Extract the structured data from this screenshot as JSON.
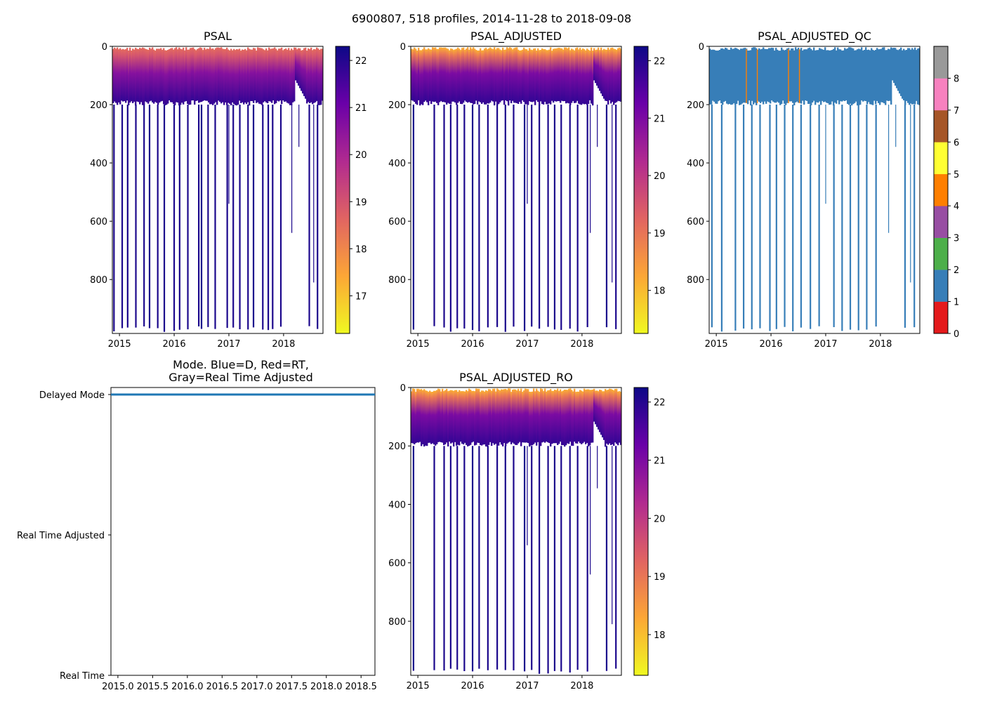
{
  "suptitle": "6900807, 518 profiles, 2014-11-28 to 2018-09-08",
  "palettes": {
    "plasma": [
      "#f0f921",
      "#fca636",
      "#e16462",
      "#b12a90",
      "#6a00a8",
      "#0d0887"
    ],
    "qc": [
      "#e41a1c",
      "#377eb8",
      "#4daf4a",
      "#984ea3",
      "#ff7f00",
      "#ffff33",
      "#a65628",
      "#f781bf",
      "#999999"
    ],
    "mode_line": "#1f77b4",
    "empty": "#ffffff",
    "qc_flag_1": "#377eb8",
    "qc_flag_4": "#ff7f00"
  },
  "chart_data": [
    {
      "id": "psal",
      "type": "heatmap",
      "title": "PSAL",
      "xlabel": "",
      "ylabel": "",
      "x_ticks": [
        "2015",
        "2016",
        "2017",
        "2018"
      ],
      "x_tick_values": [
        2015,
        2016,
        2017,
        2018
      ],
      "xlim": [
        2014.87,
        2018.72
      ],
      "y_ticks": [
        "0",
        "200",
        "400",
        "600",
        "800"
      ],
      "y_tick_values": [
        0,
        200,
        400,
        600,
        800
      ],
      "ylim": [
        985,
        0
      ],
      "colorbar": {
        "ticks": [
          "17",
          "18",
          "19",
          "20",
          "21",
          "22"
        ],
        "tick_values": [
          17,
          18,
          19,
          20,
          21,
          22
        ],
        "range": [
          16.2,
          22.3
        ]
      },
      "deep_profiles": [
        2014.9,
        2015.05,
        2015.15,
        2015.3,
        2015.45,
        2015.55,
        2015.7,
        2015.82,
        2016.0,
        2016.1,
        2016.25,
        2016.45,
        2016.5,
        2016.62,
        2016.75,
        2016.97,
        2017.08,
        2017.2,
        2017.35,
        2017.45,
        2017.62,
        2017.72,
        2017.8,
        2017.95,
        2018.47,
        2018.62
      ]
    },
    {
      "id": "psal_adj",
      "type": "heatmap",
      "title": "PSAL_ADJUSTED",
      "xlabel": "",
      "ylabel": "",
      "x_ticks": [
        "2015",
        "2016",
        "2017",
        "2018"
      ],
      "x_tick_values": [
        2015,
        2016,
        2017,
        2018
      ],
      "xlim": [
        2014.87,
        2018.72
      ],
      "y_ticks": [
        "0",
        "200",
        "400",
        "600",
        "800"
      ],
      "y_tick_values": [
        0,
        200,
        400,
        600,
        800
      ],
      "ylim": [
        985,
        0
      ],
      "colorbar": {
        "ticks": [
          "18",
          "19",
          "20",
          "21",
          "22"
        ],
        "tick_values": [
          18,
          19,
          20,
          21,
          22
        ],
        "range": [
          17.25,
          22.25
        ]
      },
      "deep_profiles": [
        2014.92,
        2015.3,
        2015.48,
        2015.6,
        2015.72,
        2015.85,
        2016.0,
        2016.12,
        2016.28,
        2016.45,
        2016.6,
        2016.75,
        2016.95,
        2017.08,
        2017.22,
        2017.38,
        2017.5,
        2017.62,
        2017.78,
        2017.92,
        2018.1,
        2018.45,
        2018.62
      ]
    },
    {
      "id": "psal_adj_qc",
      "type": "heatmap",
      "title": "PSAL_ADJUSTED_QC",
      "xlabel": "",
      "ylabel": "",
      "x_ticks": [
        "2015",
        "2016",
        "2017",
        "2018"
      ],
      "x_tick_values": [
        2015,
        2016,
        2017,
        2018
      ],
      "xlim": [
        2014.87,
        2018.72
      ],
      "y_ticks": [
        "0",
        "200",
        "400",
        "600",
        "800"
      ],
      "y_tick_values": [
        0,
        200,
        400,
        600,
        800
      ],
      "ylim": [
        985,
        0
      ],
      "colorbar": {
        "ticks": [
          "0",
          "1",
          "2",
          "3",
          "4",
          "5",
          "6",
          "7",
          "8"
        ],
        "tick_values": [
          0,
          1,
          2,
          3,
          4,
          5,
          6,
          7,
          8
        ],
        "range": [
          0,
          9
        ],
        "discrete": true
      },
      "flag4_profiles": [
        2015.55,
        2015.75,
        2016.32,
        2016.52
      ],
      "deep_profiles": [
        2014.92,
        2015.1,
        2015.35,
        2015.5,
        2015.65,
        2015.8,
        2015.98,
        2016.1,
        2016.25,
        2016.4,
        2016.55,
        2016.72,
        2016.88,
        2017.15,
        2017.3,
        2017.45,
        2017.6,
        2017.75,
        2017.92,
        2018.45,
        2018.62
      ]
    },
    {
      "id": "mode",
      "type": "line",
      "title": "Mode. Blue=D, Red=RT,",
      "title_line2": "Gray=Real Time Adjusted",
      "xlabel": "",
      "ylabel": "",
      "x_ticks": [
        "2015.0",
        "2015.5",
        "2016.0",
        "2016.5",
        "2017.0",
        "2017.5",
        "2018.0",
        "2018.5"
      ],
      "x_tick_values": [
        2015.0,
        2015.5,
        2016.0,
        2016.5,
        2017.0,
        2017.5,
        2018.0,
        2018.5
      ],
      "xlim": [
        2014.9,
        2018.7
      ],
      "y_ticks": [
        "Real Time",
        "Real Time Adjusted",
        "Delayed Mode"
      ],
      "y_tick_values": [
        0,
        1,
        2
      ],
      "ylim": [
        0,
        2.05
      ],
      "series": [
        {
          "name": "Delayed Mode",
          "x": [
            2014.9,
            2018.7
          ],
          "values": [
            2,
            2
          ]
        }
      ]
    },
    {
      "id": "psal_adj_ro",
      "type": "heatmap",
      "title": "PSAL_ADJUSTED_RO",
      "xlabel": "",
      "ylabel": "",
      "x_ticks": [
        "2015",
        "2016",
        "2017",
        "2018"
      ],
      "x_tick_values": [
        2015,
        2016,
        2017,
        2018
      ],
      "xlim": [
        2014.87,
        2018.72
      ],
      "y_ticks": [
        "0",
        "200",
        "400",
        "600",
        "800"
      ],
      "y_tick_values": [
        0,
        200,
        400,
        600,
        800
      ],
      "ylim": [
        985,
        0
      ],
      "colorbar": {
        "ticks": [
          "18",
          "19",
          "20",
          "21",
          "22"
        ],
        "tick_values": [
          18,
          19,
          20,
          21,
          22
        ],
        "range": [
          17.3,
          22.25
        ]
      },
      "deep_profiles": [
        2014.92,
        2015.3,
        2015.48,
        2015.6,
        2015.72,
        2015.85,
        2016.0,
        2016.12,
        2016.28,
        2016.45,
        2016.6,
        2016.75,
        2016.95,
        2017.08,
        2017.22,
        2017.38,
        2017.5,
        2017.62,
        2017.78,
        2017.92,
        2018.1,
        2018.45,
        2018.62
      ]
    }
  ]
}
